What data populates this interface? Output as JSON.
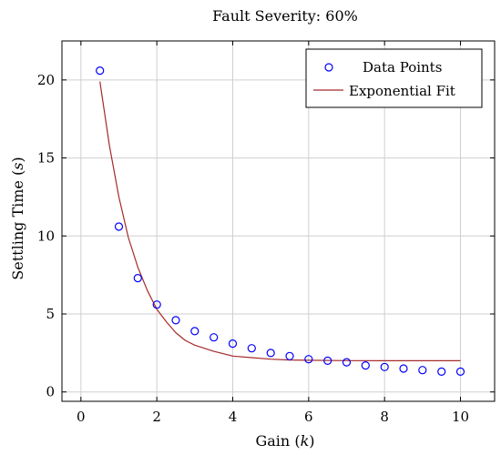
{
  "chart_data": {
    "type": "scatter",
    "title": "Fault Severity: 60%",
    "xlabel": "Gain (",
    "xlabel_var": "k",
    "xlabel_end": ")",
    "ylabel": "Settling Time (",
    "ylabel_var": "s",
    "ylabel_end": ")",
    "xlim": [
      -0.5,
      10.9
    ],
    "ylim": [
      -0.6,
      22.5
    ],
    "xticks": [
      0,
      2,
      4,
      6,
      8,
      10
    ],
    "yticks": [
      0,
      5,
      10,
      15,
      20
    ],
    "xtick_labels": [
      "0",
      "2",
      "4",
      "6",
      "8",
      "10"
    ],
    "ytick_labels": [
      "0",
      "5",
      "10",
      "15",
      "20"
    ],
    "grid": true,
    "legend_position": "top-right",
    "series": [
      {
        "name": "Data Points",
        "kind": "scatter",
        "color": "#0000ff",
        "x": [
          0.5,
          1.0,
          1.5,
          2.0,
          2.5,
          3.0,
          3.5,
          4.0,
          4.5,
          5.0,
          5.5,
          6.0,
          6.5,
          7.0,
          7.5,
          8.0,
          8.5,
          9.0,
          9.5,
          10.0
        ],
        "y": [
          20.6,
          10.6,
          7.3,
          5.6,
          4.6,
          3.9,
          3.5,
          3.1,
          2.8,
          2.5,
          2.3,
          2.1,
          2.0,
          1.9,
          1.7,
          1.6,
          1.5,
          1.4,
          1.3,
          1.3
        ]
      },
      {
        "name": "Exponential Fit",
        "kind": "line",
        "color": "#a52a2a",
        "x": [
          0.5,
          0.75,
          1.0,
          1.25,
          1.5,
          1.75,
          2.0,
          2.25,
          2.5,
          2.75,
          3.0,
          3.5,
          4.0,
          4.5,
          5.0,
          5.5,
          6.0,
          7.0,
          8.0,
          9.0,
          10.0
        ],
        "y": [
          19.9,
          15.8,
          12.5,
          9.9,
          8.0,
          6.5,
          5.3,
          4.5,
          3.8,
          3.3,
          3.0,
          2.6,
          2.3,
          2.2,
          2.1,
          2.05,
          2.03,
          2.01,
          2.0,
          2.0,
          2.0
        ]
      }
    ]
  }
}
